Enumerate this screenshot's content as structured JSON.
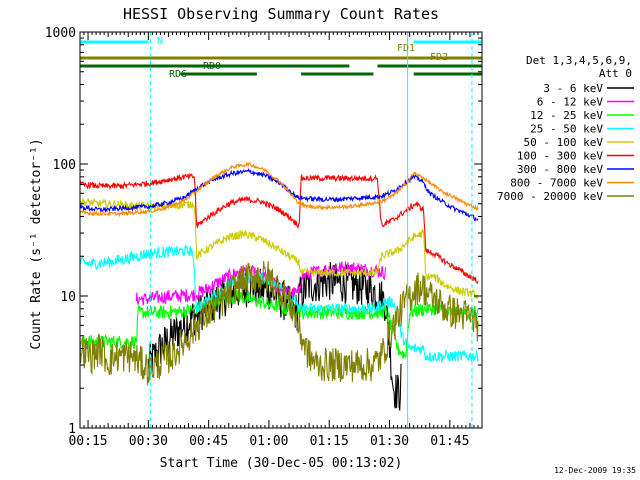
{
  "chart_data": {
    "type": "line",
    "title": "HESSI Observing Summary Count Rates",
    "xlabel": "Start Time (30-Dec-05 00:13:02)",
    "ylabel": "Count Rate (s⁻¹ detector⁻¹)",
    "ylog": true,
    "ylim": [
      1,
      1000
    ],
    "xlim_minutes": [
      13.0,
      113.0
    ],
    "x_ticks": [
      {
        "m": 15,
        "label": "00:15"
      },
      {
        "m": 30,
        "label": "00:30"
      },
      {
        "m": 45,
        "label": "00:45"
      },
      {
        "m": 60,
        "label": "01:00"
      },
      {
        "m": 75,
        "label": "01:15"
      },
      {
        "m": 90,
        "label": "01:30"
      },
      {
        "m": 105,
        "label": "01:45"
      }
    ],
    "y_ticks": [
      {
        "v": 1,
        "label": "1"
      },
      {
        "v": 10,
        "label": "10"
      },
      {
        "v": 100,
        "label": "100"
      },
      {
        "v": 1000,
        "label": "1000"
      }
    ],
    "legend": {
      "header": [
        "Det 1,3,4,5,6,9,",
        "Att 0"
      ],
      "placement": "right"
    },
    "series": [
      {
        "name": "3 - 6 keV",
        "color": "#000000",
        "x": [
          30,
          33,
          36,
          40,
          44,
          48,
          52,
          56,
          60,
          64,
          67,
          67.5,
          70,
          74,
          78,
          82,
          86,
          89,
          91,
          92.5,
          93
        ],
        "y": [
          3,
          4,
          5,
          6.5,
          8,
          9.5,
          11,
          12,
          11,
          9,
          7.5,
          10,
          12,
          13,
          12.5,
          12,
          11,
          9,
          2,
          1.8,
          2.5
        ]
      },
      {
        "name": "6 - 12 keV",
        "color": "#ff00ff",
        "x": [
          27,
          30,
          33,
          37,
          41,
          44,
          48,
          52,
          55,
          58,
          62,
          65,
          67.5,
          68,
          71,
          75,
          79,
          83,
          87,
          89
        ],
        "y": [
          9.5,
          9.5,
          9.8,
          10,
          10.2,
          11,
          13,
          15,
          15.5,
          14,
          12,
          10.5,
          10.5,
          14,
          15,
          16,
          16.5,
          16,
          15.5,
          15
        ]
      },
      {
        "name": "12 - 25 keV",
        "color": "#00ff00",
        "x": [
          13,
          18,
          23,
          27,
          27.5,
          33,
          38,
          42,
          46,
          52,
          58,
          64,
          67.5,
          68,
          72,
          78,
          84,
          87,
          89,
          90,
          92,
          94,
          95,
          99,
          101,
          103,
          104,
          106,
          108,
          110,
          112
        ],
        "y": [
          4.5,
          4.5,
          4.5,
          4.5,
          7.5,
          7.5,
          7.6,
          8,
          9,
          10,
          9,
          8,
          8,
          7.5,
          7.5,
          7.5,
          7.5,
          7.5,
          7.6,
          6.5,
          4,
          3.5,
          7.5,
          8,
          8,
          8,
          7.5,
          7.5,
          7.5,
          7.5,
          7.5
        ]
      },
      {
        "name": "25 - 50 keV",
        "color": "#00ffff",
        "x": [
          13,
          16,
          20,
          24,
          27,
          30,
          34,
          38,
          41,
          42,
          46,
          50,
          54,
          58,
          62,
          65,
          67,
          67.5,
          70,
          74,
          78,
          82,
          86,
          89,
          91,
          93,
          95,
          97,
          98.5,
          99,
          103,
          107,
          112
        ],
        "y": [
          18,
          17.5,
          18,
          19,
          20,
          21,
          21.5,
          21.8,
          22,
          8,
          10,
          12,
          13.5,
          14,
          12.5,
          10,
          9,
          8,
          8,
          8,
          8,
          8,
          8,
          9,
          9,
          5,
          4,
          4,
          4,
          3.5,
          3.5,
          3.5,
          3.5
        ]
      },
      {
        "name": "50 - 100 keV",
        "color": "#cccc00",
        "x": [
          13,
          18,
          23,
          27,
          31,
          35,
          39,
          41.5,
          42,
          46,
          50,
          54,
          58,
          62,
          65,
          67.5,
          68,
          72,
          76,
          80,
          84,
          87,
          88,
          92,
          96,
          98.5,
          99,
          101,
          104,
          107,
          110,
          112
        ],
        "y": [
          52,
          50,
          49,
          48,
          48,
          48,
          49,
          50,
          20,
          24,
          28,
          29.5,
          27,
          23,
          20,
          18,
          15,
          15,
          15,
          15,
          15,
          15,
          20,
          22,
          28,
          30,
          14,
          14,
          12,
          11,
          10.5,
          10
        ]
      },
      {
        "name": "100 - 300 keV",
        "color": "#ff0000",
        "x": [
          13,
          18,
          23,
          27,
          31,
          35,
          39,
          41.5,
          42,
          46,
          50,
          54,
          58,
          62,
          65,
          67.5,
          68,
          72,
          76,
          80,
          84,
          87,
          88,
          91,
          94,
          96.5,
          98.5,
          99,
          101,
          104,
          107,
          110,
          112
        ],
        "y": [
          70,
          68,
          68,
          70,
          72,
          76,
          80,
          80,
          34,
          42,
          50,
          54,
          52,
          46,
          40,
          34,
          78,
          78,
          78,
          78,
          78,
          78,
          34,
          38,
          44,
          50,
          45,
          22,
          21,
          18,
          16,
          14,
          13
        ]
      },
      {
        "name": "300 - 800 keV",
        "color": "#0000ff",
        "x": [
          13,
          18,
          23,
          27,
          31,
          35,
          39,
          43,
          47,
          51,
          55,
          59,
          63,
          67,
          69,
          73,
          77,
          81,
          85,
          88,
          91,
          94,
          96,
          98,
          100,
          103,
          106,
          109,
          112
        ],
        "y": [
          47,
          45,
          46,
          47,
          48,
          51,
          56,
          68,
          78,
          85,
          88,
          82,
          71,
          56,
          55,
          54,
          54,
          55,
          56,
          57,
          62,
          73,
          80,
          75,
          60,
          52,
          46,
          42,
          38
        ]
      },
      {
        "name": "800 - 7000 keV",
        "color": "#ff8800",
        "x": [
          13,
          18,
          23,
          27,
          31,
          35,
          39,
          43,
          47,
          51,
          55,
          59,
          63,
          67,
          69,
          73,
          77,
          81,
          85,
          88,
          91,
          94,
          96,
          98,
          100,
          103,
          106,
          109,
          112
        ],
        "y": [
          43,
          42,
          42,
          43,
          44,
          47,
          53,
          66,
          82,
          95,
          100,
          90,
          72,
          52,
          48,
          47,
          47,
          48,
          50,
          52,
          58,
          70,
          85,
          80,
          72,
          62,
          56,
          50,
          46
        ]
      },
      {
        "name": "7000 - 20000 keV",
        "color": "#808000",
        "x": [
          13,
          16,
          18,
          20,
          22,
          26,
          30,
          32,
          34,
          36,
          38,
          40,
          44,
          48,
          52,
          56,
          60,
          64,
          66,
          68,
          70,
          72,
          76,
          80,
          84,
          86,
          88,
          90,
          92,
          94,
          96,
          98,
          100,
          102,
          104,
          106,
          110,
          112
        ],
        "y": [
          4,
          3.5,
          4,
          3.2,
          3.5,
          3.5,
          2.8,
          3.0,
          3.3,
          3.6,
          4.2,
          5,
          7,
          9,
          12,
          14,
          14,
          10,
          8,
          5,
          3.5,
          3,
          3,
          3,
          3,
          3,
          3.5,
          5,
          7,
          9,
          11,
          12,
          10,
          9,
          8,
          7.5,
          7,
          6
        ]
      }
    ]
  },
  "annotations": {
    "night": "N",
    "fd1": "FD1",
    "fd2": "FD2",
    "rd0": "RD0",
    "rd6": "RD6"
  },
  "footer": {
    "timestamp": "12-Dec-2009 19:35"
  }
}
